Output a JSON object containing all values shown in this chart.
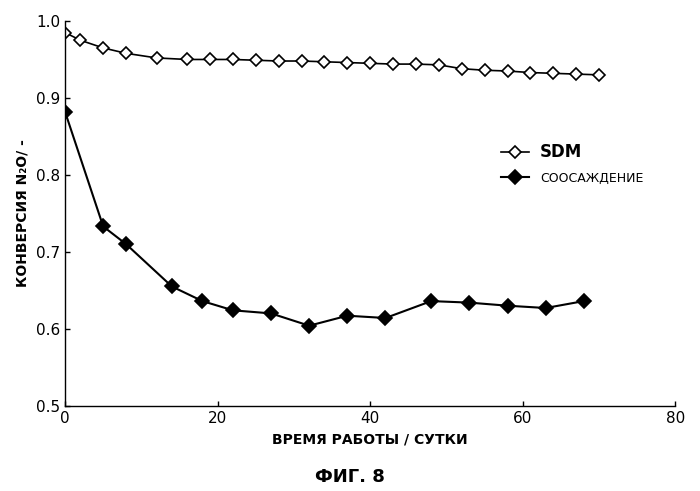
{
  "sdm_x": [
    0,
    2,
    5,
    8,
    12,
    16,
    19,
    22,
    25,
    28,
    31,
    34,
    37,
    40,
    43,
    46,
    49,
    52,
    55,
    58,
    61,
    64,
    67,
    70
  ],
  "sdm_y": [
    0.985,
    0.975,
    0.965,
    0.958,
    0.952,
    0.95,
    0.95,
    0.95,
    0.949,
    0.948,
    0.948,
    0.947,
    0.946,
    0.945,
    0.944,
    0.944,
    0.943,
    0.938,
    0.936,
    0.935,
    0.933,
    0.932,
    0.931,
    0.93
  ],
  "coppt_x": [
    0,
    5,
    8,
    14,
    18,
    22,
    27,
    32,
    37,
    42,
    48,
    53,
    58,
    63,
    68
  ],
  "coppt_y": [
    0.882,
    0.733,
    0.71,
    0.655,
    0.636,
    0.624,
    0.62,
    0.604,
    0.617,
    0.614,
    0.636,
    0.634,
    0.63,
    0.627,
    0.636
  ],
  "xlabel": "ВРЕМЯ РАБОТЫ / СУТКИ",
  "ylabel": "КОНВЕРСИЯ N₂O/ -",
  "figure_title": "ФИГ. 8",
  "xlim": [
    0,
    80
  ],
  "ylim": [
    0.5,
    1.0
  ],
  "xticks": [
    0,
    20,
    40,
    60,
    80
  ],
  "yticks": [
    0.5,
    0.6,
    0.7,
    0.8,
    0.9,
    1.0
  ],
  "legend_sdm": "SDM",
  "legend_coppt": "СООСАЖДЕНИЕ",
  "line_color": "#000000",
  "bg_color": "#ffffff"
}
